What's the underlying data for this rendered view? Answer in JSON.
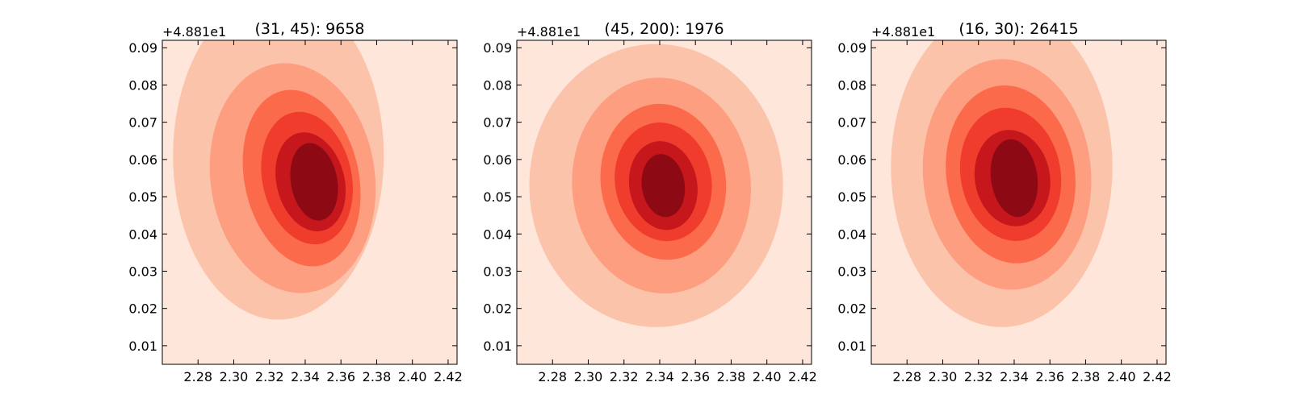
{
  "chart_data": [
    {
      "type": "contour",
      "title": "(31, 45): 9658",
      "y_offset_text": "+4.881e1",
      "xlim": [
        2.26,
        2.425
      ],
      "ylim": [
        0.005,
        0.092
      ],
      "xticks": [
        "2.28",
        "2.30",
        "2.32",
        "2.34",
        "2.36",
        "2.38",
        "2.40",
        "2.42"
      ],
      "yticks": [
        "0.01",
        "0.02",
        "0.03",
        "0.04",
        "0.05",
        "0.06",
        "0.07",
        "0.08",
        "0.09"
      ],
      "peak": {
        "x": 2.345,
        "y": 0.054
      },
      "levels": [
        {
          "cx": 2.325,
          "cy": 0.061,
          "rx": 0.059,
          "ry": 0.044,
          "rot": 0
        },
        {
          "cx": 2.333,
          "cy": 0.055,
          "rx": 0.046,
          "ry": 0.031,
          "rot": -8
        },
        {
          "cx": 2.338,
          "cy": 0.055,
          "rx": 0.032,
          "ry": 0.024,
          "rot": -12
        },
        {
          "cx": 2.341,
          "cy": 0.055,
          "rx": 0.025,
          "ry": 0.018,
          "rot": -12
        },
        {
          "cx": 2.343,
          "cy": 0.054,
          "rx": 0.019,
          "ry": 0.0135,
          "rot": -14
        },
        {
          "cx": 2.345,
          "cy": 0.054,
          "rx": 0.013,
          "ry": 0.0105,
          "rot": -10
        }
      ]
    },
    {
      "type": "contour",
      "title": "(45, 200): 1976",
      "y_offset_text": "+4.881e1",
      "xlim": [
        2.26,
        2.425
      ],
      "ylim": [
        0.005,
        0.092
      ],
      "xticks": [
        "2.28",
        "2.30",
        "2.32",
        "2.34",
        "2.36",
        "2.38",
        "2.40",
        "2.42"
      ],
      "yticks": [
        "0.01",
        "0.02",
        "0.03",
        "0.04",
        "0.05",
        "0.06",
        "0.07",
        "0.08",
        "0.09"
      ],
      "peak": {
        "x": 2.342,
        "y": 0.053
      },
      "levels": [
        {
          "cx": 2.338,
          "cy": 0.053,
          "rx": 0.071,
          "ry": 0.038,
          "rot": 0
        },
        {
          "cx": 2.341,
          "cy": 0.053,
          "rx": 0.05,
          "ry": 0.029,
          "rot": -5
        },
        {
          "cx": 2.342,
          "cy": 0.054,
          "rx": 0.035,
          "ry": 0.021,
          "rot": -8
        },
        {
          "cx": 2.342,
          "cy": 0.054,
          "rx": 0.027,
          "ry": 0.016,
          "rot": -10
        },
        {
          "cx": 2.342,
          "cy": 0.053,
          "rx": 0.019,
          "ry": 0.012,
          "rot": -10
        },
        {
          "cx": 2.342,
          "cy": 0.053,
          "rx": 0.012,
          "ry": 0.0085,
          "rot": -8
        }
      ]
    },
    {
      "type": "contour",
      "title": "(16, 30): 26415",
      "y_offset_text": "+4.881e1",
      "xlim": [
        2.26,
        2.425
      ],
      "ylim": [
        0.005,
        0.092
      ],
      "xticks": [
        "2.28",
        "2.30",
        "2.32",
        "2.34",
        "2.36",
        "2.38",
        "2.40",
        "2.42"
      ],
      "yticks": [
        "0.01",
        "0.02",
        "0.03",
        "0.04",
        "0.05",
        "0.06",
        "0.07",
        "0.08",
        "0.09"
      ],
      "peak": {
        "x": 2.34,
        "y": 0.055
      },
      "levels": [
        {
          "cx": 2.333,
          "cy": 0.058,
          "rx": 0.062,
          "ry": 0.043,
          "rot": 0
        },
        {
          "cx": 2.336,
          "cy": 0.056,
          "rx": 0.047,
          "ry": 0.031,
          "rot": -5
        },
        {
          "cx": 2.338,
          "cy": 0.056,
          "rx": 0.036,
          "ry": 0.024,
          "rot": -8
        },
        {
          "cx": 2.338,
          "cy": 0.056,
          "rx": 0.028,
          "ry": 0.018,
          "rot": -10
        },
        {
          "cx": 2.339,
          "cy": 0.055,
          "rx": 0.021,
          "ry": 0.013,
          "rot": -10
        },
        {
          "cx": 2.34,
          "cy": 0.055,
          "rx": 0.013,
          "ry": 0.0105,
          "rot": -8
        }
      ]
    }
  ],
  "colors": {
    "background": "#fee6db",
    "levels": [
      "#fcc3ab",
      "#fc9e7f",
      "#fb6b4b",
      "#ef3c2c",
      "#c5171c",
      "#8d0a14"
    ],
    "axis": "#000000"
  }
}
